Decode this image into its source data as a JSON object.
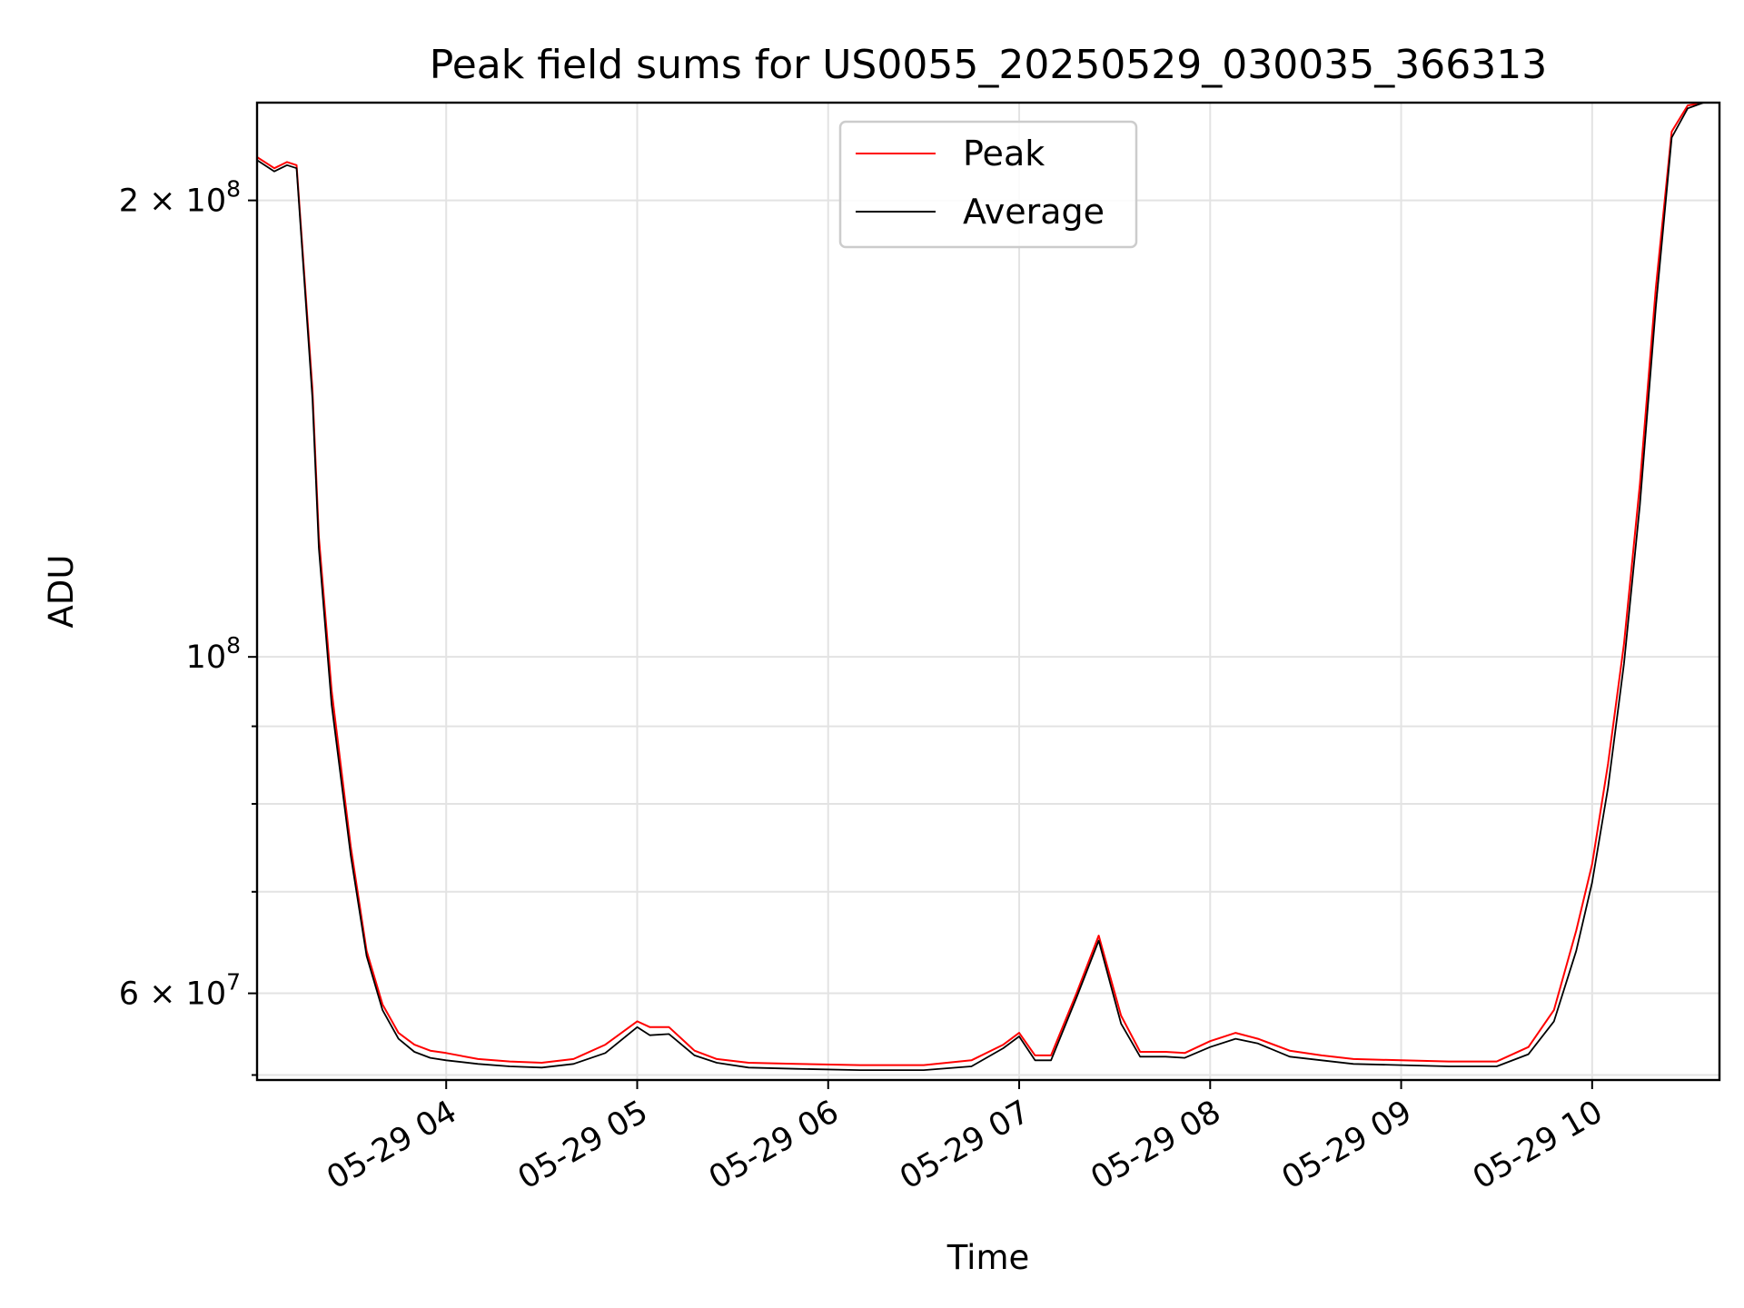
{
  "chart_data": {
    "type": "line",
    "title": "Peak field sums for US0055_20250529_030035_366313",
    "xlabel": "Time",
    "ylabel": "ADU",
    "y_scale": "log",
    "ylim": [
      52600000,
      232000000
    ],
    "xlim": [
      "2025-05-29 03:00:35",
      "2025-05-29 10:40:00"
    ],
    "grid": true,
    "legend": {
      "position": "upper center",
      "entries": [
        "Peak",
        "Average"
      ]
    },
    "x_ticks": [
      {
        "time": "2025-05-29 04:00",
        "label": "05-29 04"
      },
      {
        "time": "2025-05-29 05:00",
        "label": "05-29 05"
      },
      {
        "time": "2025-05-29 06:00",
        "label": "05-29 06"
      },
      {
        "time": "2025-05-29 07:00",
        "label": "05-29 07"
      },
      {
        "time": "2025-05-29 08:00",
        "label": "05-29 08"
      },
      {
        "time": "2025-05-29 09:00",
        "label": "05-29 09"
      },
      {
        "time": "2025-05-29 10:00",
        "label": "05-29 10"
      }
    ],
    "y_ticks_major": [
      {
        "value": 60000000,
        "label": "6 × 10⁷",
        "mant": "6 × 10",
        "exp": "7"
      },
      {
        "value": 100000000,
        "label": "10⁸",
        "mant": "10",
        "exp": "8"
      },
      {
        "value": 200000000,
        "label": "2 × 10⁸",
        "mant": "2 × 10",
        "exp": "8"
      }
    ],
    "y_ticks_minor": [
      53000000,
      70000000,
      80000000,
      90000000
    ],
    "series": [
      {
        "name": "Peak",
        "color": "#ff0000",
        "x": [
          "2025-05-29 03:00",
          "2025-05-29 03:06",
          "2025-05-29 03:10",
          "2025-05-29 03:13",
          "2025-05-29 03:18",
          "2025-05-29 03:20",
          "2025-05-29 03:24",
          "2025-05-29 03:30",
          "2025-05-29 03:35",
          "2025-05-29 03:40",
          "2025-05-29 03:45",
          "2025-05-29 03:50",
          "2025-05-29 03:55",
          "2025-05-29 04:00",
          "2025-05-29 04:10",
          "2025-05-29 04:20",
          "2025-05-29 04:30",
          "2025-05-29 04:40",
          "2025-05-29 04:50",
          "2025-05-29 05:00",
          "2025-05-29 05:04",
          "2025-05-29 05:10",
          "2025-05-29 05:18",
          "2025-05-29 05:25",
          "2025-05-29 05:35",
          "2025-05-29 05:50",
          "2025-05-29 06:10",
          "2025-05-29 06:30",
          "2025-05-29 06:45",
          "2025-05-29 06:55",
          "2025-05-29 07:00",
          "2025-05-29 07:05",
          "2025-05-29 07:10",
          "2025-05-29 07:18",
          "2025-05-29 07:25",
          "2025-05-29 07:32",
          "2025-05-29 07:38",
          "2025-05-29 07:46",
          "2025-05-29 07:52",
          "2025-05-29 08:00",
          "2025-05-29 08:08",
          "2025-05-29 08:15",
          "2025-05-29 08:25",
          "2025-05-29 08:35",
          "2025-05-29 08:45",
          "2025-05-29 09:00",
          "2025-05-29 09:15",
          "2025-05-29 09:30",
          "2025-05-29 09:40",
          "2025-05-29 09:48",
          "2025-05-29 09:55",
          "2025-05-29 10:00",
          "2025-05-29 10:05",
          "2025-05-29 10:10",
          "2025-05-29 10:15",
          "2025-05-29 10:20",
          "2025-05-29 10:25",
          "2025-05-29 10:30",
          "2025-05-29 10:35",
          "2025-05-29 10:40"
        ],
        "y": [
          214000000,
          210000000,
          212000000,
          211000000,
          150000000,
          120000000,
          95000000,
          75000000,
          64000000,
          59000000,
          56500000,
          55500000,
          55000000,
          54800000,
          54300000,
          54100000,
          54000000,
          54300000,
          55500000,
          57500000,
          57000000,
          57000000,
          55000000,
          54300000,
          54000000,
          53900000,
          53800000,
          53800000,
          54200000,
          55500000,
          56500000,
          54600000,
          54600000,
          60000000,
          65500000,
          58000000,
          54900000,
          54900000,
          54800000,
          55800000,
          56500000,
          56000000,
          55000000,
          54600000,
          54300000,
          54200000,
          54100000,
          54100000,
          55300000,
          58500000,
          66000000,
          73000000,
          85000000,
          102000000,
          130000000,
          175000000,
          222000000,
          231000000,
          232000000,
          232000000
        ]
      },
      {
        "name": "Average",
        "color": "#000000",
        "x": [
          "2025-05-29 03:00",
          "2025-05-29 03:06",
          "2025-05-29 03:10",
          "2025-05-29 03:13",
          "2025-05-29 03:18",
          "2025-05-29 03:20",
          "2025-05-29 03:24",
          "2025-05-29 03:30",
          "2025-05-29 03:35",
          "2025-05-29 03:40",
          "2025-05-29 03:45",
          "2025-05-29 03:50",
          "2025-05-29 03:55",
          "2025-05-29 04:00",
          "2025-05-29 04:10",
          "2025-05-29 04:20",
          "2025-05-29 04:30",
          "2025-05-29 04:40",
          "2025-05-29 04:50",
          "2025-05-29 05:00",
          "2025-05-29 05:04",
          "2025-05-29 05:10",
          "2025-05-29 05:18",
          "2025-05-29 05:25",
          "2025-05-29 05:35",
          "2025-05-29 05:50",
          "2025-05-29 06:10",
          "2025-05-29 06:30",
          "2025-05-29 06:45",
          "2025-05-29 06:55",
          "2025-05-29 07:00",
          "2025-05-29 07:05",
          "2025-05-29 07:10",
          "2025-05-29 07:18",
          "2025-05-29 07:25",
          "2025-05-29 07:32",
          "2025-05-29 07:38",
          "2025-05-29 07:46",
          "2025-05-29 07:52",
          "2025-05-29 08:00",
          "2025-05-29 08:08",
          "2025-05-29 08:15",
          "2025-05-29 08:25",
          "2025-05-29 08:35",
          "2025-05-29 08:45",
          "2025-05-29 09:00",
          "2025-05-29 09:15",
          "2025-05-29 09:30",
          "2025-05-29 09:40",
          "2025-05-29 09:48",
          "2025-05-29 09:55",
          "2025-05-29 10:00",
          "2025-05-29 10:05",
          "2025-05-29 10:10",
          "2025-05-29 10:15",
          "2025-05-29 10:20",
          "2025-05-29 10:25",
          "2025-05-29 10:30",
          "2025-05-29 10:35",
          "2025-05-29 10:40"
        ],
        "y": [
          213000000,
          209000000,
          211000000,
          210000000,
          148000000,
          118000000,
          93000000,
          74000000,
          63500000,
          58500000,
          56000000,
          54900000,
          54400000,
          54200000,
          53900000,
          53700000,
          53600000,
          53900000,
          54800000,
          57000000,
          56300000,
          56400000,
          54600000,
          54000000,
          53600000,
          53500000,
          53400000,
          53400000,
          53700000,
          55200000,
          56200000,
          54200000,
          54200000,
          59600000,
          65000000,
          57300000,
          54500000,
          54500000,
          54400000,
          55300000,
          56000000,
          55600000,
          54500000,
          54200000,
          53900000,
          53800000,
          53700000,
          53700000,
          54700000,
          57500000,
          64000000,
          71000000,
          82000000,
          99000000,
          126000000,
          170000000,
          220000000,
          230000000,
          232000000,
          232000000
        ]
      }
    ]
  }
}
